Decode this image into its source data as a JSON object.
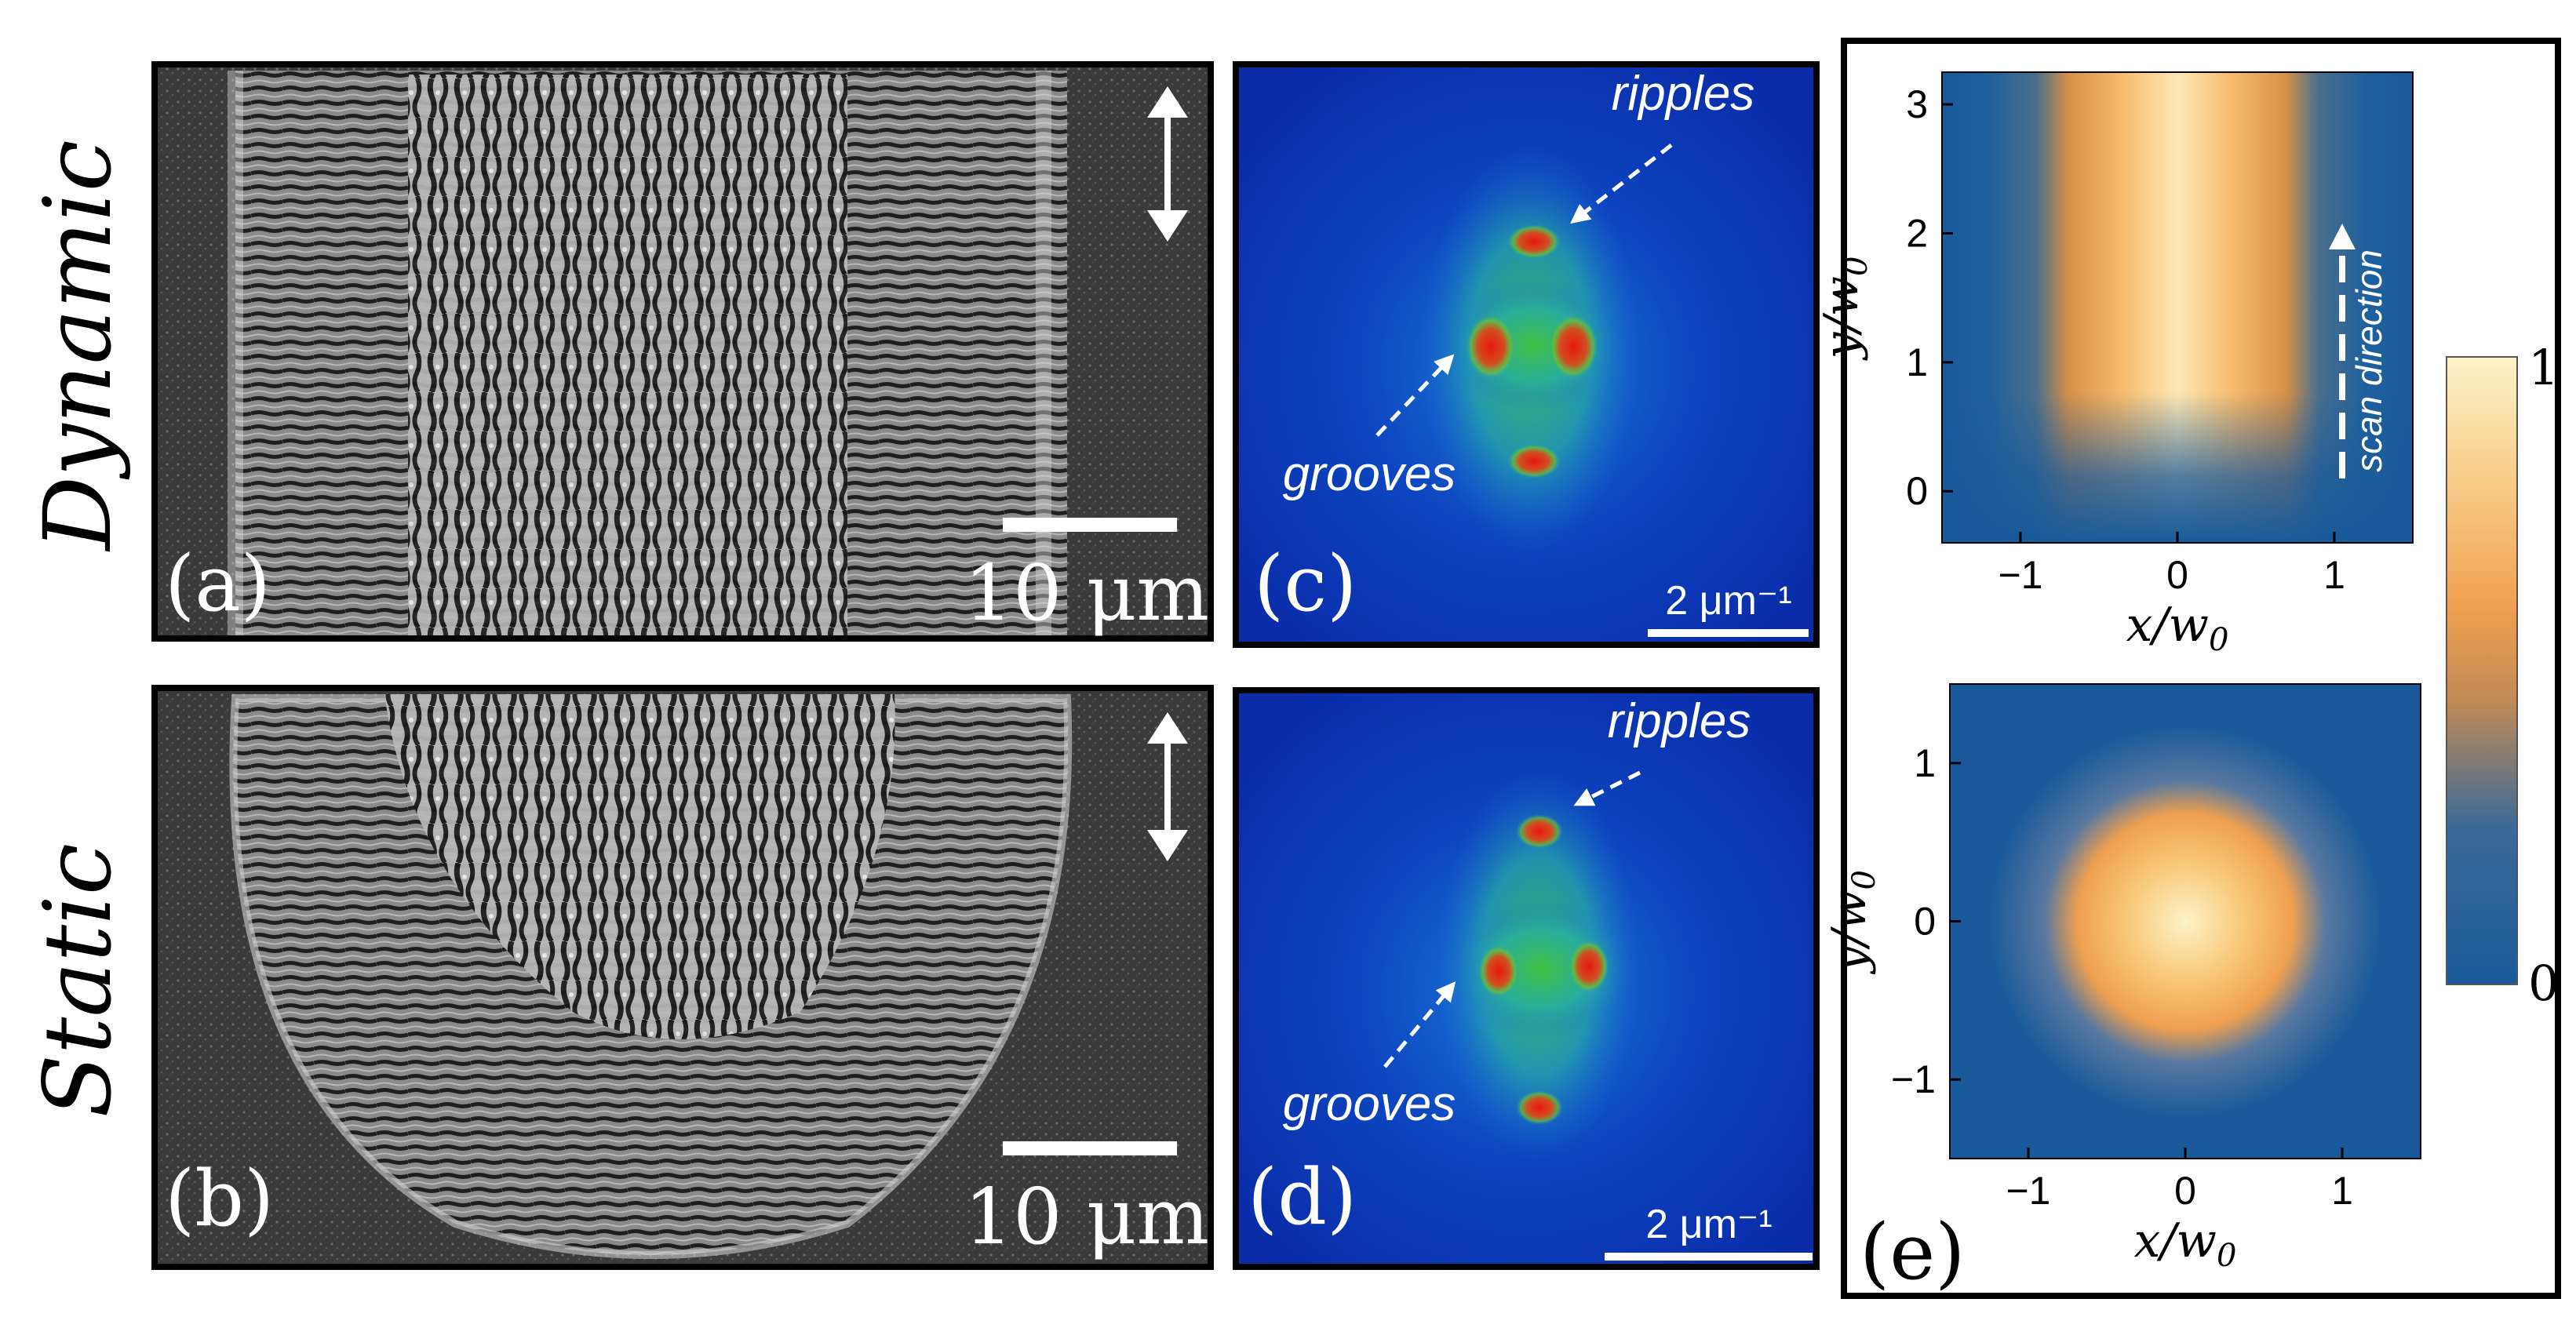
{
  "row_labels": {
    "dynamic": "Dynamic",
    "static": "Static"
  },
  "panels": {
    "a": {
      "label": "(a)",
      "scalebar": "10 μm"
    },
    "b": {
      "label": "(b)",
      "scalebar": "10 μm"
    },
    "c": {
      "label": "(c)",
      "scalebar": "2 μm⁻¹",
      "annot_top": "ripples",
      "annot_bottom": "grooves"
    },
    "d": {
      "label": "(d)",
      "scalebar": "2 μm⁻¹",
      "annot_top": "ripples",
      "annot_bottom": "grooves"
    },
    "e": {
      "label": "(e)",
      "scan_direction": "scan direction"
    }
  },
  "chart_data": [
    {
      "type": "heatmap",
      "xlabel": "x/w0",
      "ylabel": "y/w0",
      "xlim": [
        -1.5,
        1.5
      ],
      "ylim": [
        -0.4,
        3.25
      ],
      "xticks": [
        "−1",
        "0",
        "1"
      ],
      "yticks": [
        "0",
        "1",
        "2",
        "3"
      ]
    },
    {
      "type": "heatmap",
      "xlabel": "x/w0",
      "ylabel": "y/w0",
      "xlim": [
        -1.5,
        1.5
      ],
      "ylim": [
        -1.5,
        1.5
      ],
      "xticks": [
        "−1",
        "0",
        "1"
      ],
      "yticks": [
        "−1",
        "0",
        "1"
      ]
    }
  ],
  "colorbar": {
    "min_label": "0",
    "max_label": "1",
    "color_low": "#1a5a9a",
    "color_mid": "#f0a050",
    "color_high": "#fdf2c8"
  },
  "colors": {
    "fft_bg": "#0a2fb0",
    "fft_peak": "#e02010",
    "sem_bg": "#2a2a2a"
  }
}
